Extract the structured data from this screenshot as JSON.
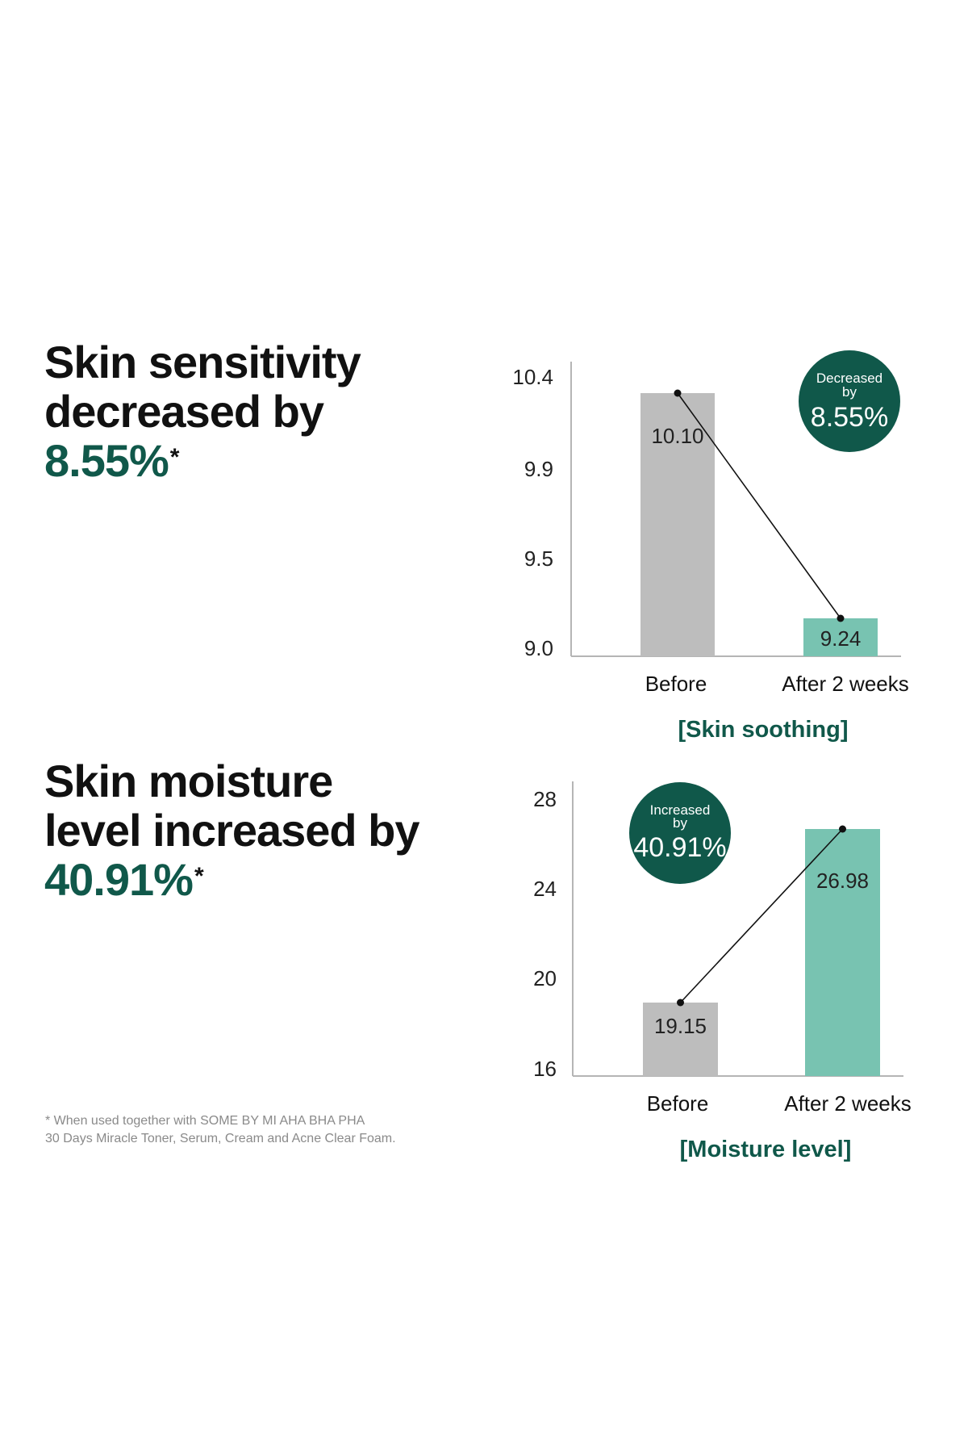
{
  "colors": {
    "accent": "#10584a",
    "before_bar": "#bdbdbd",
    "after_bar": "#78c3b1",
    "axis": "#b5b5b5",
    "connector": "#111111"
  },
  "headline_1": {
    "line1": "Skin sensitivity",
    "line2": "decreased by",
    "value": "8.55%",
    "mark": "*"
  },
  "headline_2": {
    "line1": "Skin moisture",
    "line2": "level increased by",
    "value": "40.91%",
    "mark": "*"
  },
  "footnote": {
    "line1": "* When used together with SOME BY MI AHA BHA PHA",
    "line2": "30 Days Miracle Toner, Serum, Cream and Acne Clear Foam."
  },
  "chart_data": [
    {
      "type": "bar",
      "title": "[Skin soothing]",
      "categories": [
        "Before",
        "After 2 weeks"
      ],
      "values": [
        10.1,
        9.24
      ],
      "value_labels": [
        "10.10",
        "9.24"
      ],
      "yticks": [
        "9.0",
        "9.5",
        "9.9",
        "10.4"
      ],
      "ylim": [
        9.0,
        10.4
      ],
      "badge": {
        "line1": "Decreased",
        "line2": "by",
        "value": "8.55%"
      },
      "connector_line": true
    },
    {
      "type": "bar",
      "title": "[Moisture level]",
      "categories": [
        "Before",
        "After 2 weeks"
      ],
      "values": [
        19.15,
        26.98
      ],
      "value_labels": [
        "19.15",
        "26.98"
      ],
      "yticks": [
        "16",
        "20",
        "24",
        "28"
      ],
      "ylim": [
        16,
        28
      ],
      "badge": {
        "line1": "Increased",
        "line2": "by",
        "value": "40.91%"
      },
      "connector_line": true
    }
  ]
}
